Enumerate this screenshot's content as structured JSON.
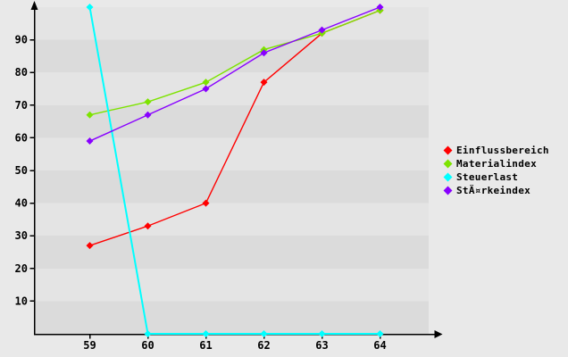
{
  "page": {
    "background": "#e9e9e9"
  },
  "chart_data": {
    "type": "line",
    "title": "",
    "xlabel": "",
    "ylabel": "",
    "x": [
      59,
      60,
      61,
      62,
      63,
      64
    ],
    "x_ticks": [
      "59",
      "60",
      "61",
      "62",
      "63",
      "64"
    ],
    "y_ticks": [
      10,
      20,
      30,
      40,
      50,
      60,
      70,
      80,
      90
    ],
    "ylim": [
      0,
      100
    ],
    "grid": "horizontal-bands",
    "band_colors": [
      "#dbdbdb",
      "#e4e4e4"
    ],
    "axis_color": "#000000",
    "legend_position": "right",
    "marker": "diamond",
    "series": [
      {
        "name": "Einflussbereich",
        "color": "#ff0000",
        "values": [
          27,
          33,
          40,
          77,
          92,
          99
        ]
      },
      {
        "name": "Materialindex",
        "color": "#7de300",
        "values": [
          67,
          71,
          77,
          87,
          92,
          99
        ]
      },
      {
        "name": "Steuerlast",
        "color": "#00ffff",
        "values": [
          100,
          0,
          0,
          0,
          0,
          0
        ]
      },
      {
        "name": "StÄ¤rkeindex",
        "color": "#8800ff",
        "values": [
          59,
          67,
          75,
          86,
          93,
          100
        ]
      }
    ]
  }
}
